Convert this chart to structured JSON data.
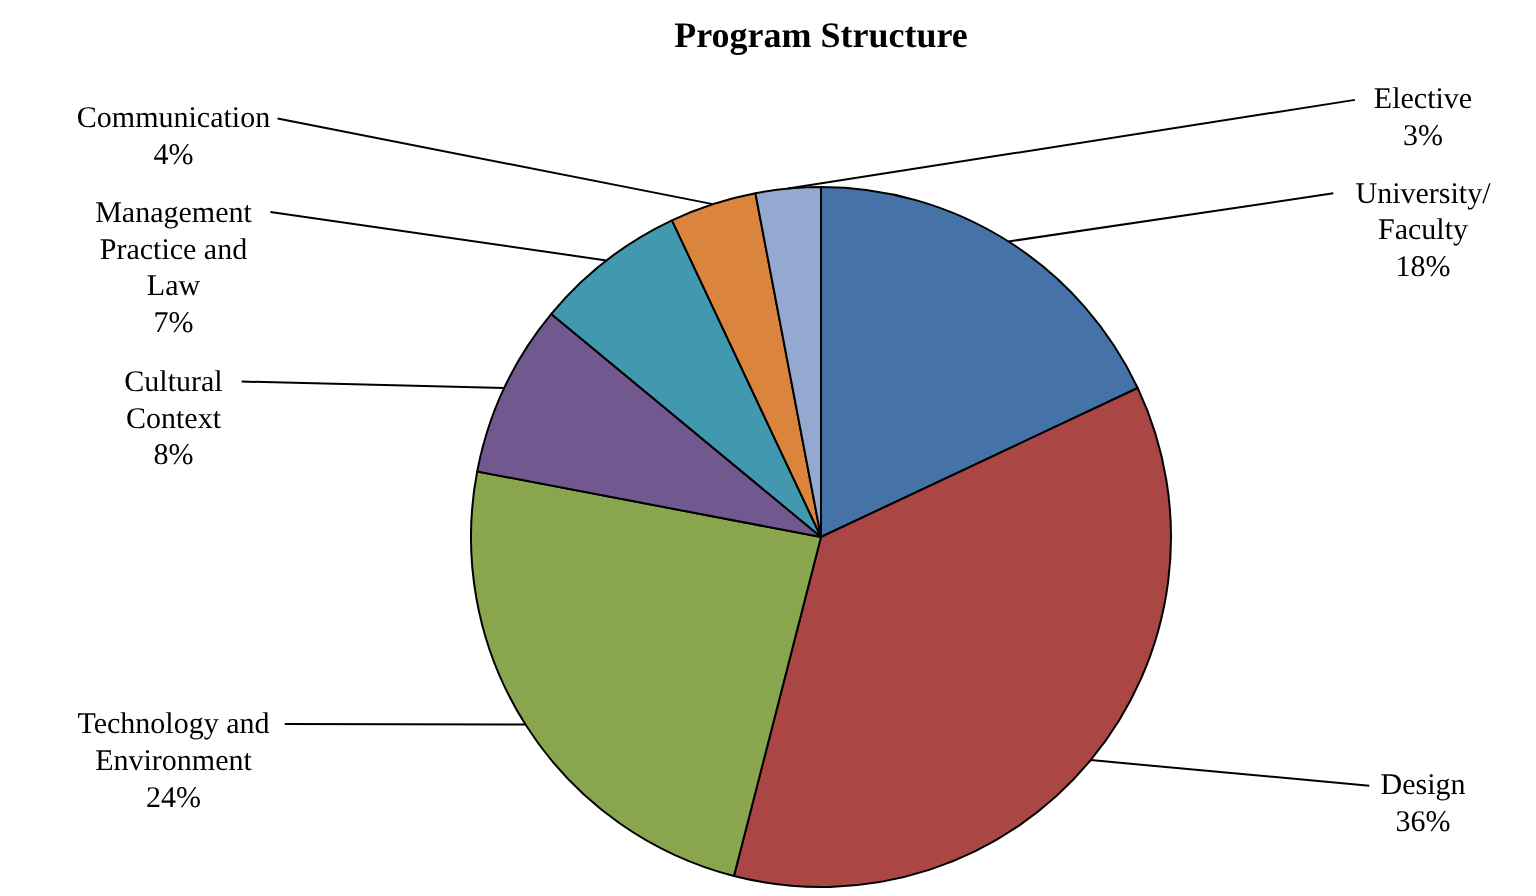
{
  "chart_data": {
    "type": "pie",
    "title": "Program Structure",
    "categories": [
      "University/Faculty",
      "Design",
      "Technology and Environment",
      "Cultural Context",
      "Management Practice and Law",
      "Communication",
      "Elective"
    ],
    "values": [
      18,
      36,
      24,
      8,
      7,
      4,
      3
    ],
    "colors": [
      "#4572a7",
      "#aa4643",
      "#89a54e",
      "#71588f",
      "#4198af",
      "#db843d",
      "#93a9cf"
    ],
    "value_labels": [
      "18%",
      "36%",
      "24%",
      "8%",
      "7%",
      "4%",
      "3%"
    ]
  }
}
